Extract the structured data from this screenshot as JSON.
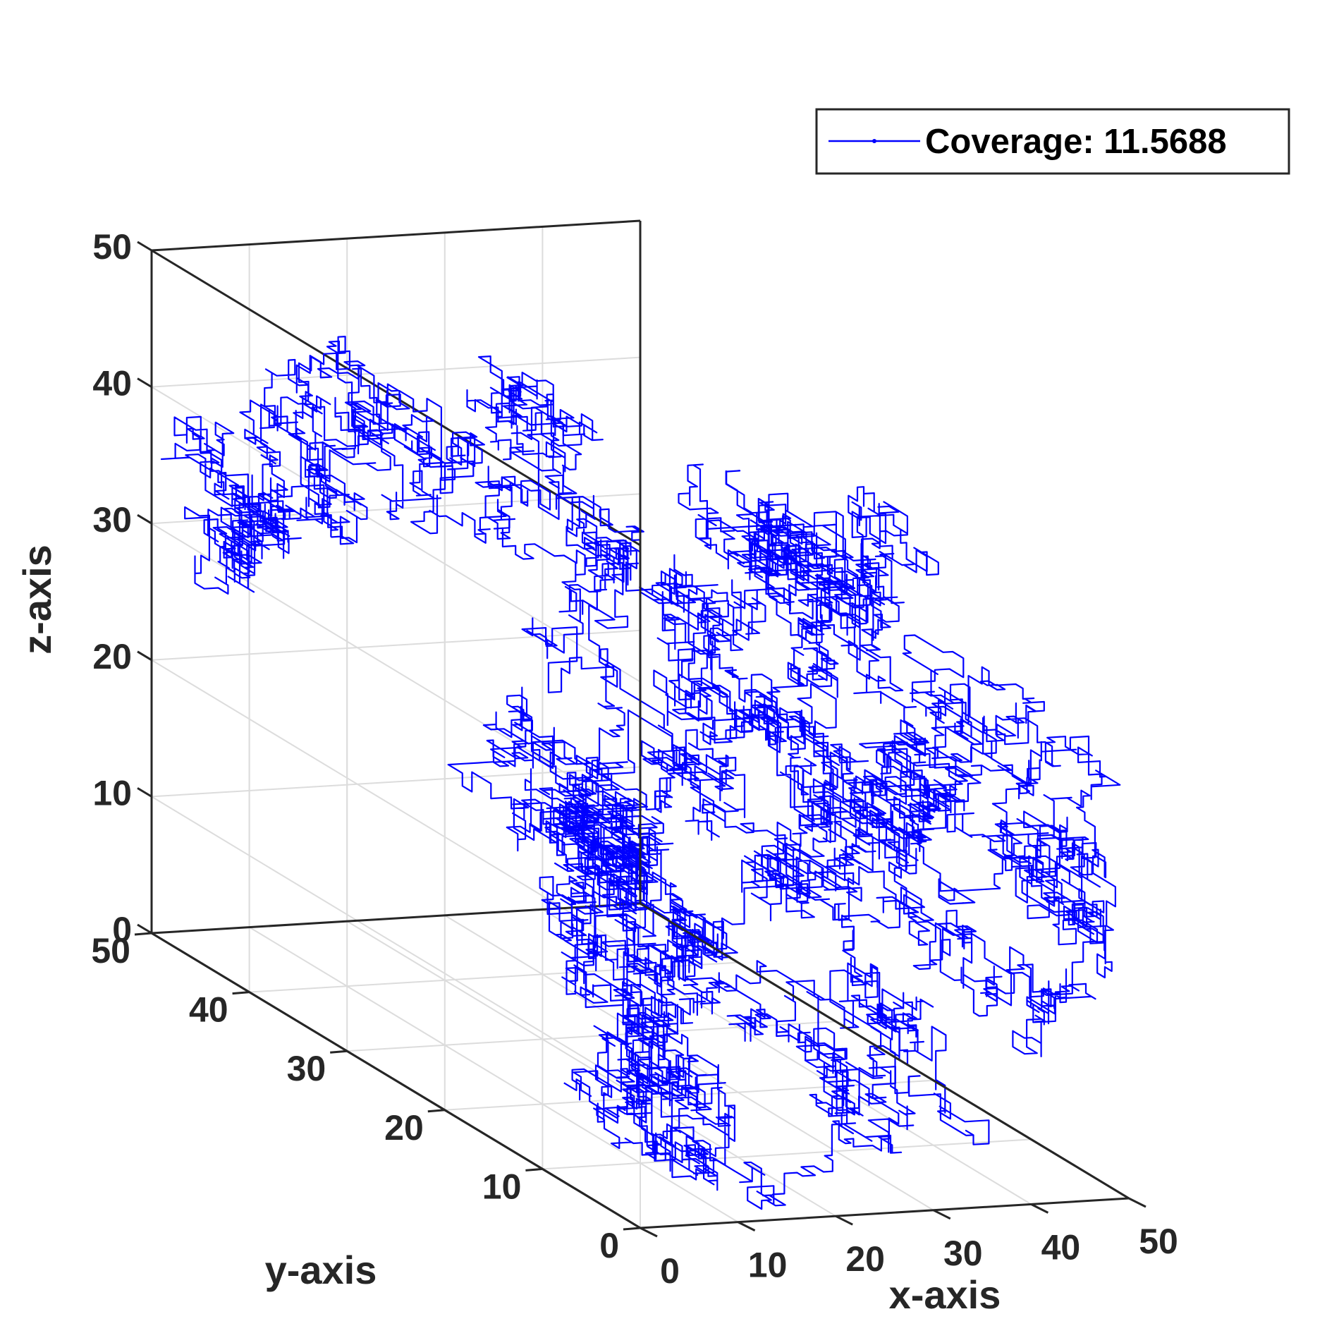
{
  "chart_data": {
    "type": "line",
    "projection": "3d",
    "title": "",
    "xlabel": "x-axis",
    "ylabel": "y-axis",
    "zlabel": "z-axis",
    "xlim": [
      0,
      50
    ],
    "ylim": [
      0,
      50
    ],
    "zlim": [
      0,
      50
    ],
    "x_ticks": [
      "0",
      "10",
      "20",
      "30",
      "40",
      "50"
    ],
    "y_ticks": [
      "0",
      "10",
      "20",
      "30",
      "40",
      "50"
    ],
    "z_ticks": [
      "0",
      "10",
      "20",
      "30",
      "40",
      "50"
    ],
    "grid": true,
    "legend_position": "top-right",
    "series": [
      {
        "name": "Coverage: 11.5688",
        "color": "#0000ff",
        "style": "3d random walk (lattice steps), densely tangled",
        "clusters": [
          {
            "x": 3,
            "y": 40,
            "z": 33
          },
          {
            "x": 12,
            "y": 40,
            "z": 46
          },
          {
            "x": 14,
            "y": 14,
            "z": 33
          },
          {
            "x": 22,
            "y": 34,
            "z": 46
          },
          {
            "x": 28,
            "y": 15,
            "z": 34
          },
          {
            "x": 34,
            "y": 25,
            "z": 39
          },
          {
            "x": 37,
            "y": 17,
            "z": 40
          },
          {
            "x": 38,
            "y": 6,
            "z": 32
          },
          {
            "x": 45,
            "y": 4,
            "z": 27
          },
          {
            "x": 23,
            "y": 6,
            "z": 20
          },
          {
            "x": 8,
            "y": 18,
            "z": 20
          },
          {
            "x": 15,
            "y": 26,
            "z": 18
          },
          {
            "x": 20,
            "y": 10,
            "z": 13
          },
          {
            "x": 42,
            "y": 6,
            "z": 20
          },
          {
            "x": 33,
            "y": 4,
            "z": 10
          },
          {
            "x": 6,
            "y": 6,
            "z": 12
          },
          {
            "x": 3,
            "y": 3,
            "z": 9
          }
        ]
      }
    ]
  }
}
